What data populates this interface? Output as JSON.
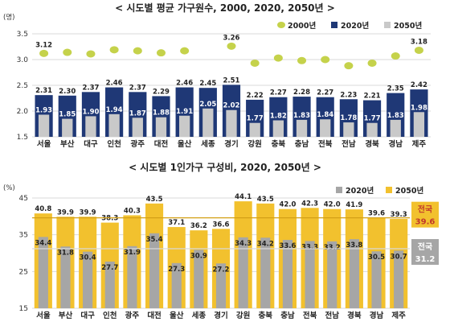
{
  "colors": {
    "y2000": "#c5d24b",
    "y2020": "#1f3876",
    "y2050": "#c9c9c9",
    "ratio2020": "#a6a6a6",
    "ratio2050": "#f2c12e",
    "label_red": "#c0392b",
    "grid": "#d9d9d9",
    "nation_line_2050": "#d4a017",
    "nation_line_2020": "#d9d9d9"
  },
  "chart_data": [
    {
      "type": "bar",
      "title": "< 시도별 평균 가구원수, 2000, 2020, 2050년 >",
      "unit": "(명)",
      "categories": [
        "서울",
        "부산",
        "대구",
        "인천",
        "광주",
        "대전",
        "울산",
        "세종",
        "경기",
        "강원",
        "충북",
        "충남",
        "전북",
        "전남",
        "경북",
        "경남",
        "제주"
      ],
      "ylim": [
        1.5,
        3.5
      ],
      "yticks": [
        "1.5",
        "2.0",
        "2.5",
        "3.0",
        "3.5"
      ],
      "series": [
        {
          "name": "2000년",
          "kind": "dot",
          "values": [
            3.12,
            null,
            null,
            null,
            null,
            null,
            null,
            null,
            3.26,
            null,
            null,
            null,
            null,
            null,
            null,
            null,
            3.18
          ],
          "dot_values": [
            3.12,
            3.14,
            3.11,
            3.19,
            3.17,
            3.13,
            3.17,
            null,
            3.26,
            2.93,
            3.03,
            2.98,
            3.0,
            2.88,
            2.93,
            3.07,
            3.18
          ],
          "labeled": [
            true,
            false,
            false,
            false,
            false,
            false,
            false,
            false,
            true,
            false,
            false,
            false,
            false,
            false,
            false,
            false,
            true
          ]
        },
        {
          "name": "2020년",
          "kind": "bar",
          "values": [
            2.31,
            2.3,
            2.37,
            2.46,
            2.37,
            2.29,
            2.46,
            2.45,
            2.51,
            2.22,
            2.27,
            2.28,
            2.27,
            2.23,
            2.21,
            2.35,
            2.42
          ]
        },
        {
          "name": "2050년",
          "kind": "bar",
          "values": [
            1.93,
            1.85,
            1.9,
            1.94,
            1.87,
            1.88,
            1.91,
            2.05,
            2.02,
            1.77,
            1.82,
            1.83,
            1.84,
            1.78,
            1.77,
            1.83,
            1.98
          ]
        }
      ],
      "legend": "top-right"
    },
    {
      "type": "bar",
      "title": "< 시도별 1인가구 구성비, 2020, 2050년 >",
      "unit": "(%)",
      "categories": [
        "서울",
        "부산",
        "대구",
        "인천",
        "광주",
        "대전",
        "울산",
        "세종",
        "경기",
        "강원",
        "충북",
        "충남",
        "전북",
        "전남",
        "경북",
        "경남",
        "제주"
      ],
      "ylim": [
        15,
        45
      ],
      "yticks": [
        "15",
        "25",
        "35",
        "45"
      ],
      "series": [
        {
          "name": "2050년",
          "values": [
            40.8,
            39.9,
            39.9,
            38.3,
            40.3,
            43.5,
            37.1,
            36.2,
            36.6,
            44.1,
            43.5,
            42.0,
            42.3,
            42.0,
            41.9,
            39.6,
            39.3
          ]
        },
        {
          "name": "2020년",
          "values": [
            34.4,
            31.8,
            30.4,
            27.7,
            31.9,
            35.4,
            27.3,
            30.9,
            27.2,
            34.3,
            34.2,
            33.6,
            33.3,
            33.2,
            33.8,
            30.5,
            30.7
          ]
        }
      ],
      "nation": {
        "label": "전국",
        "v2050": 39.6,
        "v2020": 31.2,
        "v2050_text": "39.6",
        "v2020_text": "31.2"
      },
      "legend_labels": [
        "2020년",
        "2050년"
      ],
      "legend": "top-right"
    }
  ]
}
